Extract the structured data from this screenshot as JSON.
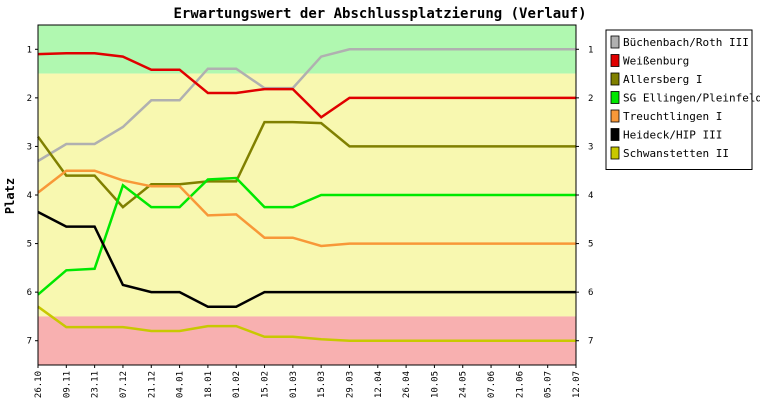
{
  "chart_data": {
    "type": "line",
    "title": "Erwartungswert der Abschlussplatzierung (Verlauf)",
    "ylabel": "Platz",
    "xlabel": "",
    "y_axis": "inverted",
    "ylim": [
      0.5,
      7.5
    ],
    "yticks": [
      1,
      2,
      3,
      4,
      5,
      6,
      7
    ],
    "categories": [
      "26.10",
      "09.11",
      "23.11",
      "07.12",
      "21.12",
      "04.01",
      "18.01",
      "01.02",
      "15.02",
      "01.03",
      "15.03",
      "29.03",
      "12.04",
      "26.04",
      "10.05",
      "24.05",
      "07.06",
      "21.06",
      "05.07",
      "12.07"
    ],
    "bands": [
      {
        "from": 0.5,
        "to": 1.5,
        "color": "#b0f8b0"
      },
      {
        "from": 1.5,
        "to": 6.5,
        "color": "#f8f8b0"
      },
      {
        "from": 6.5,
        "to": 7.5,
        "color": "#f8b0b0"
      }
    ],
    "legend_position": "right",
    "series": [
      {
        "name": "Büchenbach/Roth III",
        "color": "#b0b0b0",
        "values": [
          3.3,
          2.95,
          2.95,
          2.6,
          2.05,
          2.05,
          1.4,
          1.4,
          1.8,
          1.8,
          1.15,
          1,
          1,
          1,
          1,
          1,
          1,
          1,
          1,
          1
        ]
      },
      {
        "name": "Weißenburg",
        "color": "#e00000",
        "values": [
          1.1,
          1.08,
          1.08,
          1.15,
          1.42,
          1.42,
          1.9,
          1.9,
          1.82,
          1.82,
          2.4,
          2,
          2,
          2,
          2,
          2,
          2,
          2,
          2,
          2
        ]
      },
      {
        "name": "Allersberg I",
        "color": "#808000",
        "values": [
          2.8,
          3.6,
          3.6,
          4.25,
          3.78,
          3.78,
          3.72,
          3.72,
          2.5,
          2.5,
          2.52,
          3,
          3,
          3,
          3,
          3,
          3,
          3,
          3,
          3
        ]
      },
      {
        "name": "SG Ellingen/Pleinfeld",
        "color": "#00e800",
        "values": [
          6.05,
          5.55,
          5.52,
          3.8,
          4.25,
          4.25,
          3.68,
          3.65,
          4.25,
          4.25,
          4,
          4,
          4,
          4,
          4,
          4,
          4,
          4,
          4,
          4
        ]
      },
      {
        "name": "Treuchtlingen I",
        "color": "#f89838",
        "values": [
          3.95,
          3.5,
          3.5,
          3.7,
          3.82,
          3.82,
          4.42,
          4.4,
          4.88,
          4.88,
          5.05,
          5,
          5,
          5,
          5,
          5,
          5,
          5,
          5,
          5
        ]
      },
      {
        "name": "Heideck/HIP III",
        "color": "#000000",
        "values": [
          4.35,
          4.65,
          4.65,
          5.85,
          6,
          6,
          6.3,
          6.3,
          6,
          6,
          6,
          6,
          6,
          6,
          6,
          6,
          6,
          6,
          6,
          6
        ]
      },
      {
        "name": "Schwanstetten II",
        "color": "#c8c800",
        "values": [
          6.3,
          6.72,
          6.72,
          6.72,
          6.8,
          6.8,
          6.7,
          6.7,
          6.92,
          6.92,
          6.97,
          7,
          7,
          7,
          7,
          7,
          7,
          7,
          7,
          7
        ]
      }
    ]
  }
}
